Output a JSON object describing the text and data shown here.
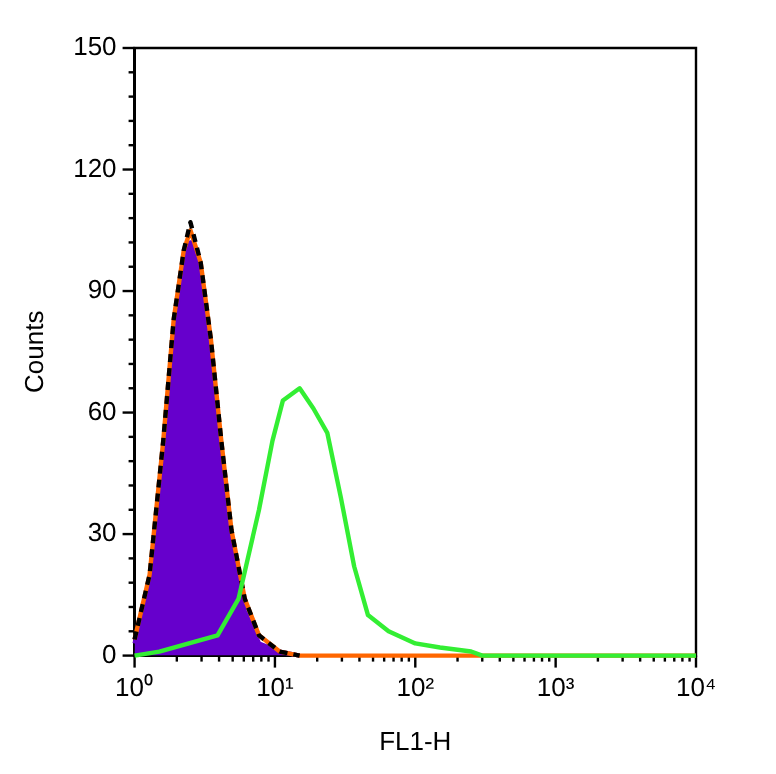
{
  "chart_data": {
    "type": "line",
    "xlabel": "FL1-H",
    "ylabel": "Counts",
    "log": "x",
    "xlim": [
      1,
      10000
    ],
    "ylim": [
      0,
      150
    ],
    "xticks": [
      {
        "value": 1,
        "label": "10⁰"
      },
      {
        "value": 2,
        "label": null
      },
      {
        "value": 3,
        "label": null
      },
      {
        "value": 4,
        "label": null
      },
      {
        "value": 5,
        "label": null
      },
      {
        "value": 6,
        "label": null
      },
      {
        "value": 7,
        "label": null
      },
      {
        "value": 8,
        "label": null
      },
      {
        "value": 9,
        "label": null
      },
      {
        "value": 10,
        "label": "10¹"
      },
      {
        "value": 20,
        "label": null
      },
      {
        "value": 30,
        "label": null
      },
      {
        "value": 40,
        "label": null
      },
      {
        "value": 50,
        "label": null
      },
      {
        "value": 60,
        "label": null
      },
      {
        "value": 70,
        "label": null
      },
      {
        "value": 80,
        "label": null
      },
      {
        "value": 90,
        "label": null
      },
      {
        "value": 100,
        "label": "10²"
      },
      {
        "value": 200,
        "label": null
      },
      {
        "value": 300,
        "label": null
      },
      {
        "value": 400,
        "label": null
      },
      {
        "value": 500,
        "label": null
      },
      {
        "value": 600,
        "label": null
      },
      {
        "value": 700,
        "label": null
      },
      {
        "value": 800,
        "label": null
      },
      {
        "value": 900,
        "label": null
      },
      {
        "value": 1000,
        "label": "10³"
      },
      {
        "value": 2000,
        "label": null
      },
      {
        "value": 3000,
        "label": null
      },
      {
        "value": 4000,
        "label": null
      },
      {
        "value": 5000,
        "label": null
      },
      {
        "value": 6000,
        "label": null
      },
      {
        "value": 7000,
        "label": null
      },
      {
        "value": 8000,
        "label": null
      },
      {
        "value": 9000,
        "label": null
      },
      {
        "value": 10000,
        "label": "10⁴"
      }
    ],
    "yticks": [
      0,
      {
        "value": 6,
        "label": null
      },
      {
        "value": 12,
        "label": null
      },
      {
        "value": 18,
        "label": null
      },
      {
        "value": 24,
        "label": null
      },
      30,
      {
        "value": 36,
        "label": null
      },
      {
        "value": 42,
        "label": null
      },
      {
        "value": 48,
        "label": null
      },
      {
        "value": 54,
        "label": null
      },
      60,
      {
        "value": 66,
        "label": null
      },
      {
        "value": 72,
        "label": null
      },
      {
        "value": 78,
        "label": null
      },
      {
        "value": 84,
        "label": null
      },
      90,
      {
        "value": 96,
        "label": null
      },
      {
        "value": 102,
        "label": null
      },
      {
        "value": 108,
        "label": null
      },
      {
        "value": 114,
        "label": null
      },
      120,
      {
        "value": 126,
        "label": null
      },
      {
        "value": 132,
        "label": null
      },
      {
        "value": 138,
        "label": null
      },
      {
        "value": 144,
        "label": null
      },
      150
    ],
    "grid": false,
    "legend": false,
    "marker": "none",
    "series": [
      {
        "type": "area",
        "color": "#6600cc",
        "x": [
          1,
          1.28,
          1.6,
          1.9,
          2.24,
          2.5,
          2.96,
          3.5,
          4.15,
          4.9,
          6.1,
          7.7,
          10.8,
          15
        ],
        "values": [
          3,
          17,
          50,
          80,
          97,
          102,
          94,
          75,
          50,
          28,
          11,
          3,
          1,
          0
        ]
      },
      {
        "type": "line",
        "color": "#ff6600",
        "x": [
          1,
          1.28,
          1.6,
          1.9,
          2.24,
          2.5,
          2.96,
          3.5,
          4.15,
          4.9,
          6.1,
          7.7,
          10.8,
          15,
          10000
        ],
        "values": [
          4,
          20,
          53,
          83,
          100,
          105,
          97,
          78,
          53,
          31,
          14,
          5,
          1,
          0,
          0
        ]
      },
      {
        "type": "line",
        "color": "#000000",
        "line_style": "dashed",
        "x": [
          1,
          1.28,
          1.6,
          1.9,
          2.24,
          2.5,
          2.96,
          3.5,
          4.15,
          4.9,
          6.1,
          7.7,
          10.8,
          15
        ],
        "values": [
          4,
          20,
          53,
          83,
          100,
          107,
          97,
          78,
          53,
          31,
          14,
          5,
          1,
          0
        ]
      },
      {
        "type": "line",
        "color": "#33ee33",
        "x": [
          1,
          1.5,
          3.9,
          5.5,
          7.7,
          9.6,
          11.4,
          15,
          18.8,
          23.6,
          29.5,
          36.7,
          46,
          64.5,
          100,
          150,
          250,
          300,
          10000
        ],
        "values": [
          0,
          1,
          5,
          14,
          36,
          53,
          63,
          66,
          61,
          55,
          39,
          22,
          10,
          6,
          3,
          2,
          1,
          0,
          0
        ]
      }
    ]
  }
}
